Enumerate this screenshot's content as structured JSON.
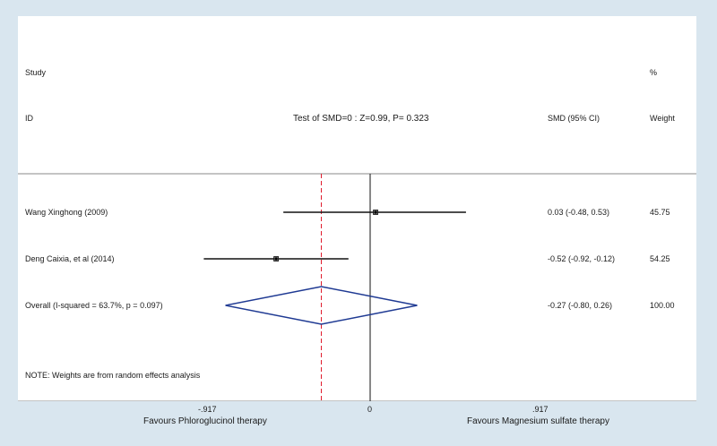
{
  "chart_data": {
    "type": "forest",
    "header": {
      "study_label_1": "Study",
      "study_label_2": "ID",
      "test_label": "Test of SMD=0 : Z=0.99, P= 0.323",
      "effect_col_label": "SMD (95% CI)",
      "weight_label_1": "%",
      "weight_label_2": "Weight"
    },
    "studies": [
      {
        "name": "Wang Xinghong (2009)",
        "smd": 0.03,
        "ci_low": -0.48,
        "ci_high": 0.53,
        "ci_text": "0.03 (-0.48, 0.53)",
        "weight": "45.75"
      },
      {
        "name": "Deng Caixia, et al (2014)",
        "smd": -0.52,
        "ci_low": -0.92,
        "ci_high": -0.12,
        "ci_text": "-0.52 (-0.92, -0.12)",
        "weight": "54.25"
      }
    ],
    "overall": {
      "name": "Overall  (I-squared = 63.7%, p = 0.097)",
      "smd": -0.27,
      "ci_low": -0.8,
      "ci_high": 0.26,
      "ci_text": "-0.27 (-0.80, 0.26)",
      "weight": "100.00"
    },
    "note": "NOTE: Weights are from random effects analysis",
    "x_ticks": [
      {
        "value": -0.917,
        "label": "-.917"
      },
      {
        "value": 0,
        "label": "0"
      },
      {
        "value": 0.917,
        "label": ".917"
      }
    ],
    "xlim": [
      -0.917,
      0.917
    ],
    "favours_left": "Favours Phloroglucinol therapy",
    "favours_right": "Favours Magnesium sulfate therapy",
    "colors": {
      "diamond": "#1f3a93",
      "overall_line": "#e0192a",
      "ci_line": "#111111",
      "null_line": "#111111"
    }
  }
}
